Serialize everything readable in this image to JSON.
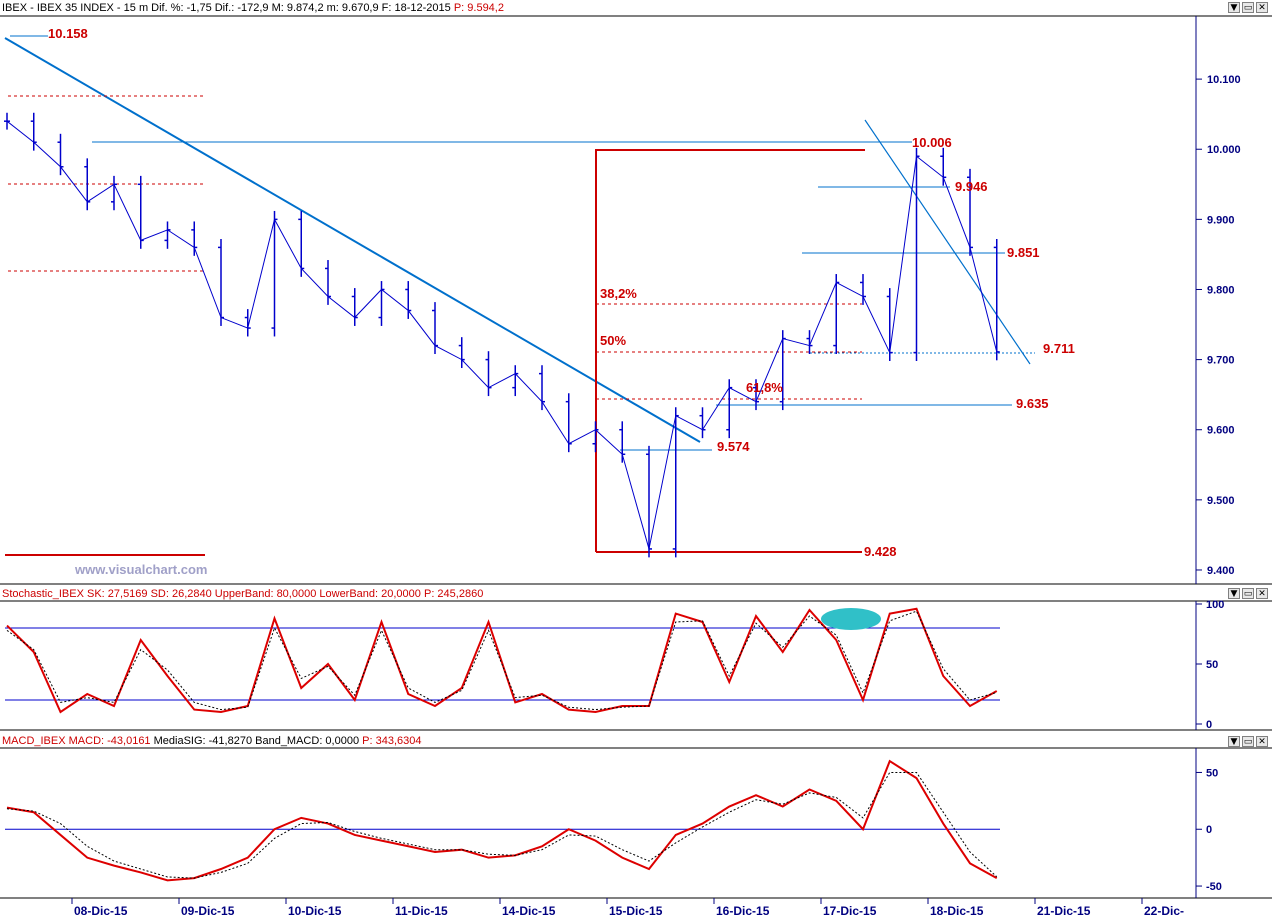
{
  "header": {
    "price_title_prefix": "IBEX - IBEX 35 INDEX -  15 m  Dif. %: -1,75  Dif.: -172,9  M: 9.874,2  m: 9.670,9  F: 18-12-2015",
    "price_title_suffix": "P: 9.594,2",
    "stoch_title_prefix": "Stochastic_IBEX SK: 27,5169  SD: 26,2840  UpperBand: 80,0000  LowerBand: 20,0000",
    "stoch_title_suffix": "P: 245,2860",
    "macd_title_prefix": "MACD_IBEX MACD: -43,0161",
    "macd_title_mid": "MediaSIG: -41,8270  Band_MACD: 0,0000",
    "macd_title_suffix": "P: 343,6304",
    "window_buttons": [
      "▼",
      "▭",
      "✕"
    ]
  },
  "watermark": "www.visualchart.com",
  "colors": {
    "price_bar": "#0000cc",
    "trendline": "#0070cc",
    "level_text": "#cc0000",
    "fib_line": "#cc0000",
    "band_line": "#0000cc",
    "sk_line": "#dd0000",
    "sd_line": "#000000",
    "highlight": "#30c0c8"
  },
  "chart_data": [
    {
      "type": "candlestick",
      "title": "IBEX - IBEX 35 INDEX - 15 m",
      "x_tick_labels": [
        "08-Dic-15",
        "09-Dic-15",
        "10-Dic-15",
        "11-Dic-15",
        "14-Dic-15",
        "15-Dic-15",
        "16-Dic-15",
        "17-Dic-15",
        "18-Dic-15",
        "21-Dic-15",
        "22-Dic-"
      ],
      "y_ticks": [
        "10.100",
        "10.000",
        "9.900",
        "9.800",
        "9.700",
        "9.600",
        "9.500",
        "9.400"
      ],
      "ylim": [
        9380,
        10190
      ],
      "series": [
        {
          "name": "IBEX",
          "x": [
            0,
            0.25,
            0.5,
            0.75,
            1,
            1.25,
            1.5,
            1.75,
            2,
            2.25,
            2.5,
            2.75,
            3,
            3.25,
            3.5,
            3.75,
            4,
            4.25,
            4.5,
            4.75,
            5,
            5.25,
            5.5,
            5.75,
            6,
            6.25,
            6.5,
            6.75,
            7,
            7.25,
            7.5,
            7.75,
            8,
            8.25,
            8.5,
            8.75,
            9.0,
            9.25
          ],
          "values": [
            10040,
            10010,
            9975,
            9925,
            9950,
            9870,
            9885,
            9860,
            9760,
            9745,
            9900,
            9830,
            9790,
            9760,
            9800,
            9770,
            9720,
            9700,
            9660,
            9680,
            9640,
            9580,
            9600,
            9565,
            9430,
            9620,
            9600,
            9660,
            9640,
            9730,
            9720,
            9810,
            9790,
            9710,
            9990,
            9960,
            9860,
            9711
          ]
        }
      ],
      "annotations": {
        "levels": [
          "10.158",
          "10.006",
          "9.946",
          "9.851",
          "9.711",
          "9.635",
          "9.574",
          "9.428"
        ],
        "fib_labels": [
          "38,2%",
          "50%",
          "61,8%"
        ]
      }
    },
    {
      "type": "line",
      "title": "Stochastic_IBEX",
      "y_ticks": [
        "100",
        "50",
        "0"
      ],
      "ylim": [
        0,
        100
      ],
      "bands": [
        80,
        20
      ],
      "series": [
        {
          "name": "SK",
          "x": [
            0,
            0.25,
            0.5,
            0.75,
            1,
            1.25,
            1.5,
            1.75,
            2,
            2.25,
            2.5,
            2.75,
            3,
            3.25,
            3.5,
            3.75,
            4,
            4.25,
            4.5,
            4.75,
            5,
            5.25,
            5.5,
            5.75,
            6,
            6.25,
            6.5,
            6.75,
            7,
            7.25,
            7.5,
            7.75,
            8,
            8.25,
            8.5,
            8.75,
            9,
            9.25
          ],
          "values": [
            82,
            60,
            10,
            25,
            15,
            70,
            40,
            12,
            10,
            15,
            88,
            30,
            50,
            20,
            85,
            25,
            15,
            30,
            85,
            18,
            25,
            12,
            10,
            15,
            15,
            92,
            85,
            35,
            90,
            60,
            95,
            70,
            20,
            92,
            96,
            40,
            15,
            27.5169
          ]
        },
        {
          "name": "SD",
          "x": [
            0,
            0.25,
            0.5,
            0.75,
            1,
            1.25,
            1.5,
            1.75,
            2,
            2.25,
            2.5,
            2.75,
            3,
            3.25,
            3.5,
            3.75,
            4,
            4.25,
            4.5,
            4.75,
            5,
            5.25,
            5.5,
            5.75,
            6,
            6.25,
            6.5,
            6.75,
            7,
            7.25,
            7.5,
            7.75,
            8,
            8.25,
            8.5,
            8.75,
            9,
            9.25
          ],
          "values": [
            78,
            62,
            18,
            22,
            18,
            62,
            45,
            18,
            12,
            14,
            80,
            38,
            48,
            24,
            78,
            30,
            18,
            28,
            78,
            22,
            24,
            14,
            12,
            14,
            15,
            85,
            86,
            40,
            84,
            64,
            90,
            74,
            26,
            86,
            94,
            46,
            20,
            26.284
          ]
        }
      ]
    },
    {
      "type": "line",
      "title": "MACD_IBEX",
      "y_ticks": [
        "50",
        "0",
        "-50"
      ],
      "ylim": [
        -57,
        68
      ],
      "bands": [
        0
      ],
      "series": [
        {
          "name": "MACD",
          "x": [
            0,
            0.25,
            0.5,
            0.75,
            1,
            1.25,
            1.5,
            1.75,
            2,
            2.25,
            2.5,
            2.75,
            3,
            3.25,
            3.5,
            3.75,
            4,
            4.25,
            4.5,
            4.75,
            5,
            5.25,
            5.5,
            5.75,
            6,
            6.25,
            6.5,
            6.75,
            7,
            7.25,
            7.5,
            7.75,
            8,
            8.25,
            8.5,
            8.75,
            9,
            9.25
          ],
          "values": [
            19,
            15,
            -5,
            -25,
            -32,
            -38,
            -45,
            -43,
            -35,
            -25,
            0,
            10,
            5,
            -5,
            -10,
            -15,
            -20,
            -18,
            -25,
            -23,
            -15,
            0,
            -10,
            -25,
            -35,
            -5,
            5,
            20,
            30,
            20,
            35,
            25,
            0,
            60,
            45,
            5,
            -30,
            -43.0161
          ]
        },
        {
          "name": "MediaSIG",
          "x": [
            0,
            0.25,
            0.5,
            0.75,
            1,
            1.25,
            1.5,
            1.75,
            2,
            2.25,
            2.5,
            2.75,
            3,
            3.25,
            3.5,
            3.75,
            4,
            4.25,
            4.5,
            4.75,
            5,
            5.25,
            5.5,
            5.75,
            6,
            6.25,
            6.5,
            6.75,
            7,
            7.25,
            7.5,
            7.75,
            8,
            8.25,
            8.5,
            8.75,
            9,
            9.25
          ],
          "values": [
            18,
            16,
            5,
            -15,
            -28,
            -35,
            -42,
            -43,
            -38,
            -30,
            -8,
            5,
            6,
            -2,
            -8,
            -13,
            -18,
            -18,
            -22,
            -23,
            -18,
            -5,
            -6,
            -18,
            -28,
            -12,
            2,
            15,
            26,
            22,
            32,
            28,
            10,
            50,
            50,
            15,
            -20,
            -41.827
          ]
        }
      ]
    }
  ]
}
